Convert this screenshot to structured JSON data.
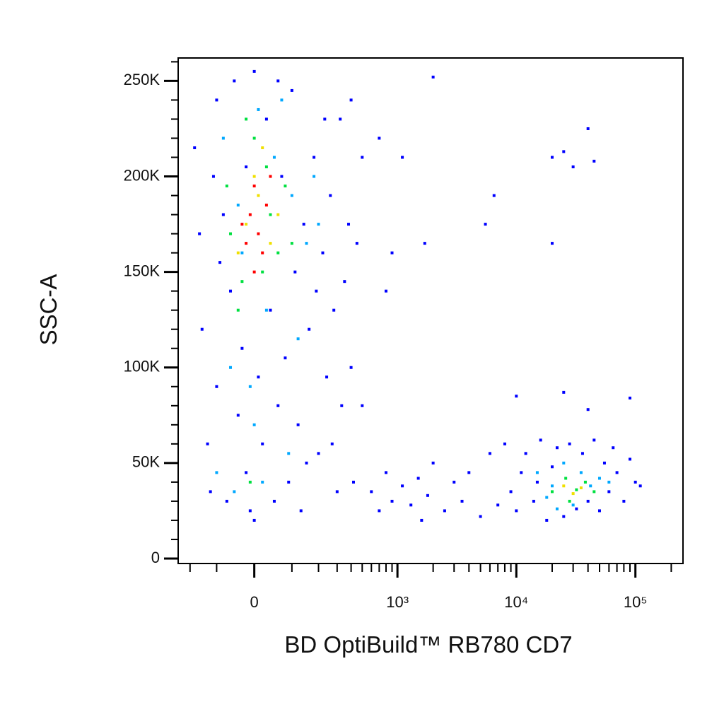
{
  "chart_data": {
    "type": "scatter",
    "xlabel": "BD OptiBuild™ RB780 CD7",
    "ylabel": "SSC-A",
    "xscale": "biexponential",
    "xlim": [
      -260,
      251000
    ],
    "ylim": [
      -2600,
      262000
    ],
    "xticks": [
      0,
      {
        "value": 1000,
        "label": "10³"
      },
      {
        "value": 10000,
        "label": "10⁴"
      },
      {
        "value": 100000,
        "label": "10⁵"
      }
    ],
    "xminorticks": [
      -200,
      -100,
      100,
      200,
      300,
      400,
      500,
      600,
      700,
      800,
      900,
      2000,
      3000,
      4000,
      5000,
      6000,
      7000,
      8000,
      9000,
      20000,
      30000,
      40000,
      50000,
      60000,
      70000,
      80000,
      90000,
      200000
    ],
    "yticks": [
      0,
      {
        "value": 50000,
        "label": "50K"
      },
      {
        "value": 100000,
        "label": "100K"
      },
      {
        "value": 150000,
        "label": "150K"
      },
      {
        "value": 200000,
        "label": "200K"
      },
      {
        "value": 250000,
        "label": "250K"
      }
    ],
    "yminorticks": [
      10000,
      20000,
      30000,
      40000,
      60000,
      70000,
      80000,
      90000,
      110000,
      120000,
      130000,
      140000,
      160000,
      170000,
      180000,
      190000,
      210000,
      220000,
      230000,
      240000,
      260000
    ],
    "series": [
      {
        "color": "#0000ff",
        "x": [
          -180,
          -150,
          -130,
          -120,
          -100,
          -100,
          -80,
          -70,
          -60,
          -50,
          -40,
          -30,
          -20,
          -10,
          0,
          10,
          20,
          30,
          40,
          50,
          60,
          70,
          80,
          90,
          100,
          110,
          120,
          130,
          140,
          160,
          180,
          200,
          220,
          240,
          260,
          280,
          300,
          320,
          350,
          380,
          400,
          450,
          500,
          -90,
          -20,
          60,
          150,
          190,
          230,
          270,
          330,
          -160,
          -110,
          0,
          420,
          600,
          700,
          800,
          900,
          1100,
          1300,
          1500,
          1600,
          1800,
          2000,
          2500,
          3000,
          3500,
          4000,
          5000,
          6000,
          7000,
          8000,
          9000,
          700,
          1100,
          900,
          1700,
          6500,
          5500,
          20000,
          25000,
          30000,
          40000,
          45000,
          20000,
          2000,
          400,
          500,
          800,
          10000,
          12000,
          14000,
          16000,
          18000,
          20000,
          22000,
          25000,
          28000,
          32000,
          36000,
          40000,
          45000,
          50000,
          55000,
          60000,
          70000,
          80000,
          90000,
          100000,
          110000,
          10000,
          25000,
          40000,
          90000,
          11000,
          15000,
          65000
        ],
        "values": [
          215000,
          120000,
          60000,
          35000,
          90000,
          240000,
          180000,
          30000,
          140000,
          250000,
          75000,
          110000,
          45000,
          25000,
          255000,
          95000,
          60000,
          230000,
          130000,
          30000,
          80000,
          200000,
          105000,
          40000,
          245000,
          150000,
          70000,
          25000,
          175000,
          120000,
          210000,
          55000,
          160000,
          95000,
          190000,
          130000,
          35000,
          230000,
          145000,
          175000,
          100000,
          165000,
          210000,
          155000,
          205000,
          250000,
          50000,
          140000,
          230000,
          60000,
          80000,
          170000,
          200000,
          20000,
          40000,
          35000,
          25000,
          45000,
          30000,
          38000,
          28000,
          42000,
          20000,
          33000,
          50000,
          25000,
          40000,
          30000,
          45000,
          22000,
          55000,
          28000,
          60000,
          35000,
          220000,
          210000,
          160000,
          165000,
          190000,
          175000,
          210000,
          213000,
          205000,
          225000,
          208000,
          165000,
          252000,
          240000,
          80000,
          140000,
          25000,
          55000,
          30000,
          62000,
          20000,
          48000,
          58000,
          22000,
          60000,
          26000,
          55000,
          30000,
          62000,
          25000,
          50000,
          35000,
          45000,
          30000,
          52000,
          40000,
          38000,
          85000,
          87000,
          78000,
          84000,
          45000,
          40000,
          58000
        ]
      },
      {
        "color": "#00a8ff",
        "x": [
          -100,
          -60,
          -30,
          0,
          30,
          50,
          70,
          100,
          120,
          150,
          -80,
          -40,
          10,
          180,
          -50,
          20,
          90,
          200,
          -10,
          15000,
          20000,
          25000,
          30000,
          35000,
          42000,
          50000,
          18000,
          60000,
          22000
        ],
        "values": [
          45000,
          100000,
          160000,
          70000,
          130000,
          210000,
          240000,
          190000,
          115000,
          165000,
          220000,
          185000,
          235000,
          200000,
          35000,
          40000,
          55000,
          175000,
          90000,
          45000,
          38000,
          50000,
          28000,
          45000,
          38000,
          42000,
          32000,
          40000,
          26000
        ]
      },
      {
        "color": "#00e040",
        "x": [
          -60,
          -30,
          0,
          20,
          40,
          60,
          -20,
          80,
          -70,
          100,
          -10,
          -40,
          30,
          20000,
          26000,
          32000,
          38000,
          28000,
          45000
        ],
        "values": [
          170000,
          145000,
          220000,
          150000,
          180000,
          160000,
          230000,
          195000,
          195000,
          165000,
          40000,
          130000,
          205000,
          35000,
          42000,
          36000,
          40000,
          30000,
          35000
        ]
      },
      {
        "color": "#f0e000",
        "x": [
          -20,
          10,
          40,
          -40,
          0,
          60,
          20,
          25000,
          30000,
          35000
        ],
        "values": [
          175000,
          190000,
          165000,
          160000,
          200000,
          180000,
          215000,
          38000,
          34000,
          37000
        ]
      },
      {
        "color": "#ff0000",
        "x": [
          -10,
          10,
          30,
          -30,
          0,
          20,
          -20,
          40,
          0
        ],
        "values": [
          180000,
          170000,
          185000,
          175000,
          195000,
          160000,
          165000,
          200000,
          150000
        ]
      }
    ]
  }
}
